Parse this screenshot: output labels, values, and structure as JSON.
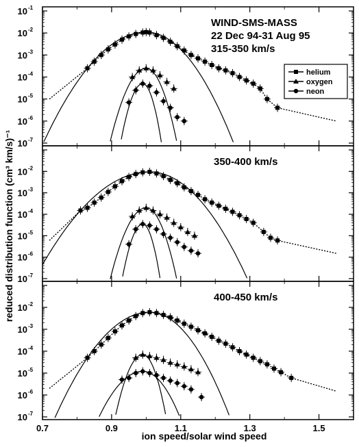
{
  "chart_data": {
    "type": "scatter",
    "xlabel": "ion speed/solar wind speed",
    "ylabel": "reduced distribution function (cm³ km/s)⁻¹",
    "xlim": [
      0.7,
      1.6
    ],
    "ylim_exp": [
      -7,
      -1
    ],
    "log_y": true,
    "x_ticks": [
      "0.7",
      "0.9",
      "1.1",
      "1.3",
      "1.5"
    ],
    "y_tick_base": "10",
    "y_tick_exponents": [
      "-1",
      "-2",
      "-3",
      "-4",
      "-5",
      "-6",
      "-7"
    ],
    "legend": {
      "position": "top-right of top panel",
      "entries": [
        {
          "label": "helium",
          "marker": "square"
        },
        {
          "label": "oxygen",
          "marker": "triangle"
        },
        {
          "label": "neon",
          "marker": "circle"
        }
      ]
    },
    "panels": [
      {
        "annotation": [
          "WIND-SMS-MASS",
          "22 Dec 94-31 Aug 95",
          "315-350  km/s"
        ],
        "series": [
          {
            "name": "helium",
            "marker": "square",
            "points": [
              [
                0.83,
                0.00025
              ],
              [
                0.85,
                0.0005
              ],
              [
                0.87,
                0.001
              ],
              [
                0.89,
                0.0018
              ],
              [
                0.91,
                0.003
              ],
              [
                0.93,
                0.005
              ],
              [
                0.95,
                0.007
              ],
              [
                0.97,
                0.009
              ],
              [
                0.99,
                0.0105
              ],
              [
                1.0,
                0.011
              ],
              [
                1.01,
                0.0105
              ],
              [
                1.03,
                0.008
              ],
              [
                1.05,
                0.006
              ],
              [
                1.07,
                0.004
              ],
              [
                1.09,
                0.0025
              ],
              [
                1.11,
                0.0016
              ],
              [
                1.13,
                0.001
              ],
              [
                1.15,
                0.0007
              ],
              [
                1.17,
                0.0005
              ],
              [
                1.19,
                0.00035
              ],
              [
                1.21,
                0.00025
              ],
              [
                1.23,
                0.0002
              ],
              [
                1.25,
                0.00015
              ],
              [
                1.27,
                0.0001
              ],
              [
                1.29,
                7e-05
              ],
              [
                1.31,
                5e-05
              ],
              [
                1.33,
                3e-05
              ],
              [
                1.35,
                1e-05
              ],
              [
                1.38,
                4e-06
              ]
            ]
          },
          {
            "name": "oxygen",
            "marker": "triangle",
            "points": [
              [
                0.96,
                0.0001
              ],
              [
                0.98,
                0.0002
              ],
              [
                1.0,
                0.00025
              ],
              [
                1.02,
                0.0002
              ],
              [
                1.04,
                0.00012
              ],
              [
                1.06,
                6e-05
              ],
              [
                1.08,
                3e-05
              ]
            ]
          },
          {
            "name": "neon",
            "marker": "circle",
            "points": [
              [
                0.95,
                7e-06
              ],
              [
                0.97,
                2.5e-05
              ],
              [
                0.99,
                5e-05
              ],
              [
                1.01,
                4e-05
              ],
              [
                1.03,
                2e-05
              ],
              [
                1.05,
                8e-06
              ],
              [
                1.07,
                4e-06
              ],
              [
                1.09,
                1.5e-06
              ],
              [
                1.11,
                1e-06
              ]
            ]
          }
        ]
      },
      {
        "annotation": [
          "350-400  km/s"
        ],
        "series": [
          {
            "name": "helium",
            "marker": "square",
            "points": [
              [
                0.81,
                0.00015
              ],
              [
                0.83,
                0.0002
              ],
              [
                0.85,
                0.00035
              ],
              [
                0.87,
                0.0006
              ],
              [
                0.89,
                0.0011
              ],
              [
                0.91,
                0.002
              ],
              [
                0.93,
                0.0035
              ],
              [
                0.95,
                0.0055
              ],
              [
                0.97,
                0.0075
              ],
              [
                0.99,
                0.009
              ],
              [
                1.01,
                0.0095
              ],
              [
                1.03,
                0.008
              ],
              [
                1.05,
                0.006
              ],
              [
                1.07,
                0.004
              ],
              [
                1.09,
                0.0028
              ],
              [
                1.11,
                0.0018
              ],
              [
                1.13,
                0.0012
              ],
              [
                1.15,
                0.0008
              ],
              [
                1.17,
                0.0005
              ],
              [
                1.19,
                0.00035
              ],
              [
                1.21,
                0.00025
              ],
              [
                1.23,
                0.00018
              ],
              [
                1.25,
                0.00013
              ],
              [
                1.27,
                9e-05
              ],
              [
                1.29,
                6e-05
              ],
              [
                1.31,
                4e-05
              ],
              [
                1.34,
                1.5e-05
              ],
              [
                1.36,
                8e-06
              ],
              [
                1.38,
                6e-06
              ]
            ]
          },
          {
            "name": "oxygen",
            "marker": "triangle",
            "points": [
              [
                0.96,
                8e-05
              ],
              [
                0.98,
                0.00015
              ],
              [
                1.0,
                0.0002
              ],
              [
                1.02,
                0.00015
              ],
              [
                1.04,
                0.0001
              ],
              [
                1.06,
                7e-05
              ],
              [
                1.08,
                4e-05
              ],
              [
                1.1,
                2.5e-05
              ],
              [
                1.12,
                1.5e-05
              ],
              [
                1.14,
                1e-05
              ]
            ]
          },
          {
            "name": "neon",
            "marker": "circle",
            "points": [
              [
                0.95,
                4e-06
              ],
              [
                0.97,
                2e-05
              ],
              [
                0.99,
                3.5e-05
              ],
              [
                1.01,
                3e-05
              ],
              [
                1.03,
                2e-05
              ],
              [
                1.05,
                1.2e-05
              ],
              [
                1.07,
                8e-06
              ],
              [
                1.09,
                5e-06
              ],
              [
                1.11,
                3e-06
              ],
              [
                1.13,
                2e-06
              ],
              [
                1.15,
                1.5e-06
              ]
            ]
          }
        ]
      },
      {
        "annotation": [
          "400-450  km/s"
        ],
        "series": [
          {
            "name": "helium",
            "marker": "square",
            "points": [
              [
                0.83,
                5e-05
              ],
              [
                0.85,
                0.0001
              ],
              [
                0.87,
                0.0002
              ],
              [
                0.89,
                0.0004
              ],
              [
                0.91,
                0.0008
              ],
              [
                0.93,
                0.0015
              ],
              [
                0.95,
                0.0025
              ],
              [
                0.97,
                0.004
              ],
              [
                0.99,
                0.0055
              ],
              [
                1.01,
                0.006
              ],
              [
                1.03,
                0.0055
              ],
              [
                1.05,
                0.0045
              ],
              [
                1.07,
                0.0035
              ],
              [
                1.09,
                0.0025
              ],
              [
                1.11,
                0.0018
              ],
              [
                1.13,
                0.0013
              ],
              [
                1.15,
                0.0009
              ],
              [
                1.17,
                0.00065
              ],
              [
                1.19,
                0.00045
              ],
              [
                1.21,
                0.0003
              ],
              [
                1.23,
                0.00022
              ],
              [
                1.25,
                0.00015
              ],
              [
                1.27,
                0.0001
              ],
              [
                1.29,
                7e-05
              ],
              [
                1.31,
                5e-05
              ],
              [
                1.33,
                3.5e-05
              ],
              [
                1.35,
                2.5e-05
              ],
              [
                1.37,
                1.6e-05
              ],
              [
                1.39,
                1.1e-05
              ],
              [
                1.42,
                6e-06
              ]
            ]
          },
          {
            "name": "oxygen",
            "marker": "triangle",
            "points": [
              [
                0.97,
                5e-05
              ],
              [
                0.99,
                7e-05
              ],
              [
                1.01,
                6e-05
              ],
              [
                1.03,
                5e-05
              ],
              [
                1.05,
                4e-05
              ],
              [
                1.07,
                3e-05
              ],
              [
                1.09,
                2.5e-05
              ],
              [
                1.11,
                2e-05
              ],
              [
                1.13,
                1.5e-05
              ],
              [
                1.15,
                1.1e-05
              ]
            ]
          },
          {
            "name": "neon",
            "marker": "circle",
            "points": [
              [
                0.93,
                5e-06
              ],
              [
                0.95,
                6e-06
              ],
              [
                0.97,
                1e-05
              ],
              [
                0.99,
                1.2e-05
              ],
              [
                1.01,
                1e-05
              ],
              [
                1.03,
                8e-06
              ],
              [
                1.05,
                6e-06
              ],
              [
                1.07,
                4.5e-06
              ],
              [
                1.09,
                3.5e-06
              ],
              [
                1.11,
                2.5e-06
              ],
              [
                1.13,
                1.8e-06
              ],
              [
                1.16,
                8e-07
              ]
            ]
          }
        ]
      }
    ]
  }
}
